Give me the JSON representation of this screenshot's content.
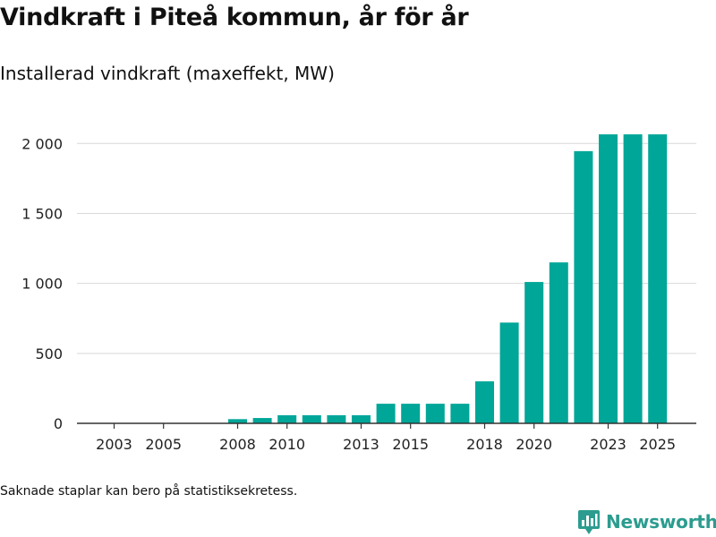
{
  "chart_data": {
    "type": "bar",
    "title": "Vindkraft i Piteå kommun, år för år",
    "subtitle": "Installerad vindkraft (maxeffekt, MW)",
    "xlabel": "",
    "ylabel": "",
    "ylim": [
      0,
      2200
    ],
    "grid": true,
    "bar_color": "#00a698",
    "categories": [
      2003,
      2004,
      2005,
      2006,
      2007,
      2008,
      2009,
      2010,
      2011,
      2012,
      2013,
      2014,
      2015,
      2016,
      2017,
      2018,
      2019,
      2020,
      2021,
      2022,
      2023,
      2024,
      2025
    ],
    "values": [
      0,
      0,
      0,
      0,
      0,
      30,
      38,
      58,
      58,
      58,
      58,
      140,
      140,
      140,
      140,
      300,
      720,
      1010,
      1150,
      1945,
      2065,
      2065,
      2065
    ],
    "x_tick_labels": [
      "2003",
      "2005",
      "2008",
      "2010",
      "2013",
      "2015",
      "2018",
      "2020",
      "2023",
      "2025"
    ],
    "y_ticks": [
      0,
      500,
      1000,
      1500,
      2000
    ],
    "y_tick_labels": [
      "0",
      "500",
      "1 000",
      "1 500",
      "2 000"
    ]
  },
  "footnote": "Saknade staplar kan bero på statistiksekretess.",
  "brand": {
    "name": "Newsworthy",
    "color": "#2b9c8f",
    "icon": "newsworthy-logo-icon"
  }
}
